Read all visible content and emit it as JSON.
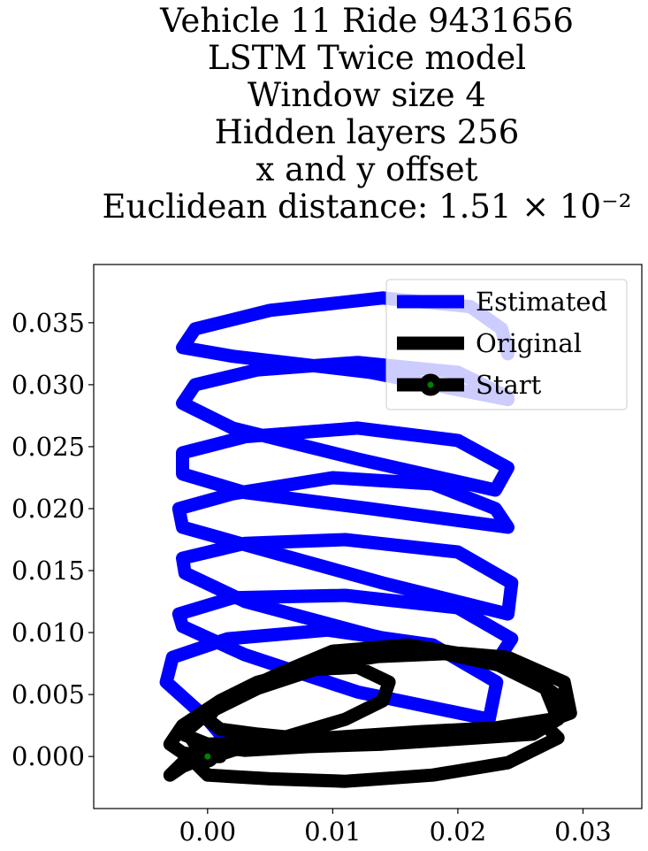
{
  "chart_data": {
    "type": "line",
    "title_lines": [
      "Vehicle 11 Ride 9431656",
      "LSTM Twice model",
      "Window size 4",
      "Hidden layers 256",
      "x and y offset",
      "Euclidean distance: 1.51 × 10⁻²"
    ],
    "xlim": [
      -0.0091,
      0.0347
    ],
    "ylim": [
      -0.0042,
      0.0397
    ],
    "xticks": [
      0.0,
      0.01,
      0.02,
      0.03
    ],
    "xtick_labels": [
      "0.00",
      "0.01",
      "0.02",
      "0.03"
    ],
    "yticks": [
      0.0,
      0.005,
      0.01,
      0.015,
      0.02,
      0.025,
      0.03,
      0.035
    ],
    "ytick_labels": [
      "0.000",
      "0.005",
      "0.010",
      "0.015",
      "0.020",
      "0.025",
      "0.030",
      "0.035"
    ],
    "grid": false,
    "legend_position": "top-right",
    "legend": [
      {
        "label": "Estimated",
        "color": "#0000ff",
        "marker": "none"
      },
      {
        "label": "Original",
        "color": "#000000",
        "marker": "none"
      },
      {
        "label": "Start",
        "color": "#000000",
        "marker": "circle",
        "marker_face": "#008000"
      }
    ],
    "series": [
      {
        "name": "Estimated",
        "color": "#0000ff",
        "x": [
          0.0017,
          0.0,
          -0.0033,
          -0.0028,
          0.0016,
          0.0096,
          0.018,
          0.0231,
          0.0225,
          0.012,
          0.003,
          -0.002,
          -0.0023,
          0.002,
          0.011,
          0.02,
          0.0243,
          0.023,
          0.013,
          0.003,
          -0.0018,
          -0.002,
          0.003,
          0.011,
          0.02,
          0.0243,
          0.024,
          0.014,
          0.004,
          -0.002,
          -0.0023,
          0.002,
          0.01,
          0.018,
          0.023,
          0.024,
          0.013,
          0.003,
          -0.002,
          -0.002,
          0.003,
          0.012,
          0.02,
          0.024,
          0.023,
          0.012,
          0.002,
          -0.002,
          -0.001,
          0.004,
          0.012,
          0.02,
          0.024,
          0.024,
          0.013,
          0.002,
          -0.002,
          -0.001,
          0.005,
          0.014,
          0.021,
          0.0235,
          0.024
        ],
        "y": [
          0.001,
          0.003,
          0.006,
          0.008,
          0.0095,
          0.0102,
          0.009,
          0.006,
          0.003,
          0.0052,
          0.0082,
          0.0105,
          0.0115,
          0.0128,
          0.013,
          0.012,
          0.0095,
          0.0075,
          0.0098,
          0.0125,
          0.0148,
          0.016,
          0.0172,
          0.0175,
          0.0165,
          0.014,
          0.0115,
          0.014,
          0.0168,
          0.0185,
          0.02,
          0.0212,
          0.0225,
          0.022,
          0.02,
          0.0185,
          0.02,
          0.0213,
          0.0228,
          0.0245,
          0.0258,
          0.0265,
          0.0255,
          0.0233,
          0.0215,
          0.024,
          0.0265,
          0.0285,
          0.03,
          0.0312,
          0.0318,
          0.031,
          0.029,
          0.0288,
          0.031,
          0.0323,
          0.033,
          0.0345,
          0.036,
          0.037,
          0.0363,
          0.0345,
          0.0325
        ]
      },
      {
        "name": "Original",
        "color": "#000000",
        "x": [
          0.0,
          -0.002,
          -0.003,
          -0.002,
          0.001,
          0.006,
          0.01,
          0.016,
          0.022,
          0.027,
          0.028,
          0.026,
          0.02,
          0.014,
          0.008,
          0.003,
          -0.001,
          -0.002,
          0.001,
          0.006,
          0.012,
          0.019,
          0.025,
          0.0285,
          0.0275,
          0.023,
          0.017,
          0.011,
          0.005,
          0.0,
          -0.002,
          0.0,
          0.004,
          0.01,
          0.017,
          0.024,
          0.0285,
          0.029,
          0.025,
          0.019,
          0.013,
          0.008,
          0.004,
          0.001,
          0.0,
          0.001,
          0.004,
          0.008,
          0.012,
          0.0145,
          0.014,
          0.011,
          0.006,
          0.002,
          -0.001,
          0.0,
          0.005,
          0.011,
          0.018,
          0.024,
          0.028,
          0.027,
          0.022,
          0.016,
          0.01,
          0.004,
          0.0,
          -0.002,
          -0.003,
          -0.002,
          0.0,
          0.001
        ],
        "y": [
          0.0,
          0.0003,
          0.001,
          0.0025,
          0.0045,
          0.0068,
          0.0085,
          0.009,
          0.008,
          0.0055,
          0.003,
          0.0018,
          0.0014,
          0.001,
          0.0008,
          0.0005,
          0.001,
          0.0025,
          0.0045,
          0.0065,
          0.008,
          0.0083,
          0.007,
          0.0045,
          0.003,
          0.0023,
          0.002,
          0.0016,
          0.0012,
          0.001,
          0.0018,
          0.0035,
          0.0055,
          0.0075,
          0.0086,
          0.008,
          0.006,
          0.0035,
          0.002,
          0.0015,
          0.0012,
          0.0014,
          0.0018,
          0.0022,
          0.003,
          0.0045,
          0.006,
          0.007,
          0.0072,
          0.006,
          0.0045,
          0.003,
          0.0015,
          0.0005,
          -0.0005,
          -0.0015,
          -0.0018,
          -0.002,
          -0.0015,
          -0.0005,
          0.0015,
          0.0025,
          0.002,
          0.0015,
          0.0012,
          0.001,
          0.0005,
          -0.0005,
          -0.0015,
          -0.0008,
          0.0,
          0.0
        ]
      }
    ],
    "start_point": {
      "x": 0.0,
      "y": 0.0,
      "label": "Start"
    }
  }
}
